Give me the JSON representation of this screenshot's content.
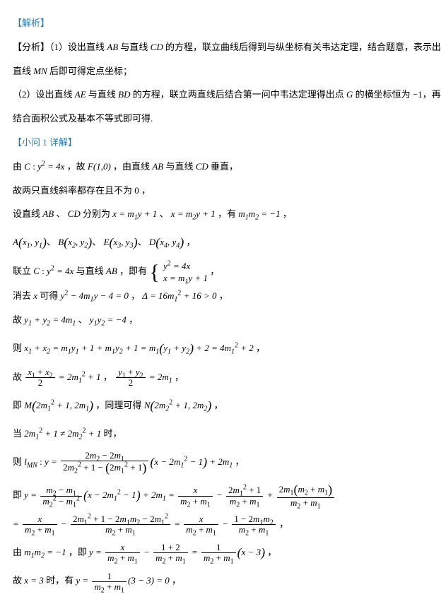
{
  "doc": {
    "text_color": "#000000",
    "heading_color": "#2a7ab0",
    "font_size_pt": 10,
    "line_height": 2.6,
    "background": "#ffffff"
  },
  "L": {
    "h1": "【解析】",
    "p1a": "【分析】（1）设出直线 ",
    "AB": "AB",
    "p1b": " 与直线 ",
    "CD": "CD",
    "p1c": " 的方程，联立曲线后得到与纵坐标有关韦达定理，结合题意，表示出",
    "p2a": "直线 ",
    "MN": "MN",
    "p2b": " 后即可得定点坐标；",
    "p3a": "（2）设出直线 ",
    "AE": "AE",
    "p3b": " 与直线 ",
    "BD": "BD",
    "p3c": " 的方程，联立两直线后结合第一问中韦达定理得出点 ",
    "G": "G",
    "p3d": " 的横坐标恒为 −1，再",
    "p4": "结合面积公式及基本不等式即可得.",
    "h2": "【小问 1 详解】",
    "p5a": "由 ",
    "C": "C",
    "p5b": " : ",
    "eq1": "y² = 4x",
    "p5c": " ，故 ",
    "F": "F",
    "p5d": "(1,0)",
    "p5e": " ，由直线 ",
    "p5f": " 与直线 ",
    "p5g": " 垂直，",
    "p6": "故两只直线斜率都存在且不为 0 ，",
    "p7a": "设直线 ",
    "p7b": " 、 ",
    "p7c": " 分别为 ",
    "eq2": "x = m₁y + 1",
    "p7d": " 、 ",
    "eq3": "x = m₂y + 1",
    "p7e": " ，有 ",
    "eq4": "m₁m₂ = −1",
    "p7f": " ，",
    "p8a": "A",
    "pt1": "(x₁, y₁)",
    "p8b": "、 B",
    "pt2": "(x₂, y₂)",
    "p8c": "、 E",
    "pt3": "(x₃, y₃)",
    "p8d": "、 D",
    "pt4": "(x₄, y₄)",
    "p8e": " ，",
    "p9a": "联立 ",
    "p9b": " : ",
    "p9c": " 与直线 ",
    "p9d": " ，即有 ",
    "br1": "y² = 4x",
    "br2": "x = m₁y + 1",
    "p9e": " ，",
    "p10a": "消去 ",
    "x": "x",
    "p10b": " 可得 ",
    "eq5": "y² − 4m₁y − 4 = 0",
    "p10c": " ， ",
    "eq6": "Δ = 16m₁² + 16 > 0",
    "p10d": " ，",
    "p11a": "故 ",
    "eq7": "y₁ + y₂ = 4m₁",
    "p11b": " 、 ",
    "eq8": "y₁y₂ = −4",
    "p11c": " ，",
    "p12a": "则 ",
    "eq9": "x₁ + x₂ = m₁y₁ + 1 + m₁y₂ + 1 = m₁(y₁ + y₂) + 2 = 4m₁² + 2",
    "p12b": " ，",
    "p13a": "故 ",
    "f1n": "x₁ + x₂",
    "f1d": "2",
    "eq10": " = 2m₁² + 1",
    "p13b": " ， ",
    "f2n": "y₁ + y₂",
    "f2d": "2",
    "eq11": " = 2m₁",
    "p13c": " ，",
    "p14a": "即 ",
    "M": "M",
    "pt5": "(2m₁² + 1, 2m₁)",
    "p14b": " ，同理可得 ",
    "N": "N",
    "pt6": "(2m₂² + 1, 2m₂)",
    "p14c": " ，",
    "p15a": "当 ",
    "eq12": "2m₁² + 1 ≠ 2m₂² + 1",
    "p15b": " 时，",
    "p16a": "则 ",
    "lMN": "l_{MN}",
    "p16b": " : ",
    "yeq": "y = ",
    "f3n": "2m₂ − 2m₁",
    "f3d": "2m₂² + 1 − (2m₁² + 1)",
    "eq13": "(x − 2m₁² − 1) + 2m₁",
    "p16c": " ，",
    "p17a": "即 ",
    "f4n": "m₂ − m₁",
    "f4d": "m₂² − m₁²",
    "eq14": "(x − 2m₁² − 1) + 2m₁ = ",
    "f5n": "x",
    "f5d": "m₂ + m₁",
    "minus": " − ",
    "f6n": "2m₁² + 1",
    "f6d": "m₂ + m₁",
    "plus": " + ",
    "f7n": "2m₁(m₂ + m₁)",
    "f7d": "m₂ + m₁",
    "p18a": "= ",
    "f8n": "2m₁² + 1 − 2m₁m₂ − 2m₁²",
    "f8d": "m₂ + m₁",
    "eq15": " = ",
    "f9n": "1 − 2m₁m₂",
    "f9d": "m₂ + m₁",
    "p18b": " ，",
    "p19a": "由 ",
    "eq16": "m₁m₂ = −1",
    "p19b": " ，即 ",
    "f10n": "1 + 2",
    "f10d": "m₂ + m₁",
    "f11n": "1",
    "f11d": "m₂ + m₁",
    "eq17": "(x − 3)",
    "p19c": " ，",
    "p20a": "故 ",
    "eq18": "x = 3",
    "p20b": " 时，有 ",
    "eq19": "(3 − 3) = 0",
    "p20c": " ，"
  }
}
